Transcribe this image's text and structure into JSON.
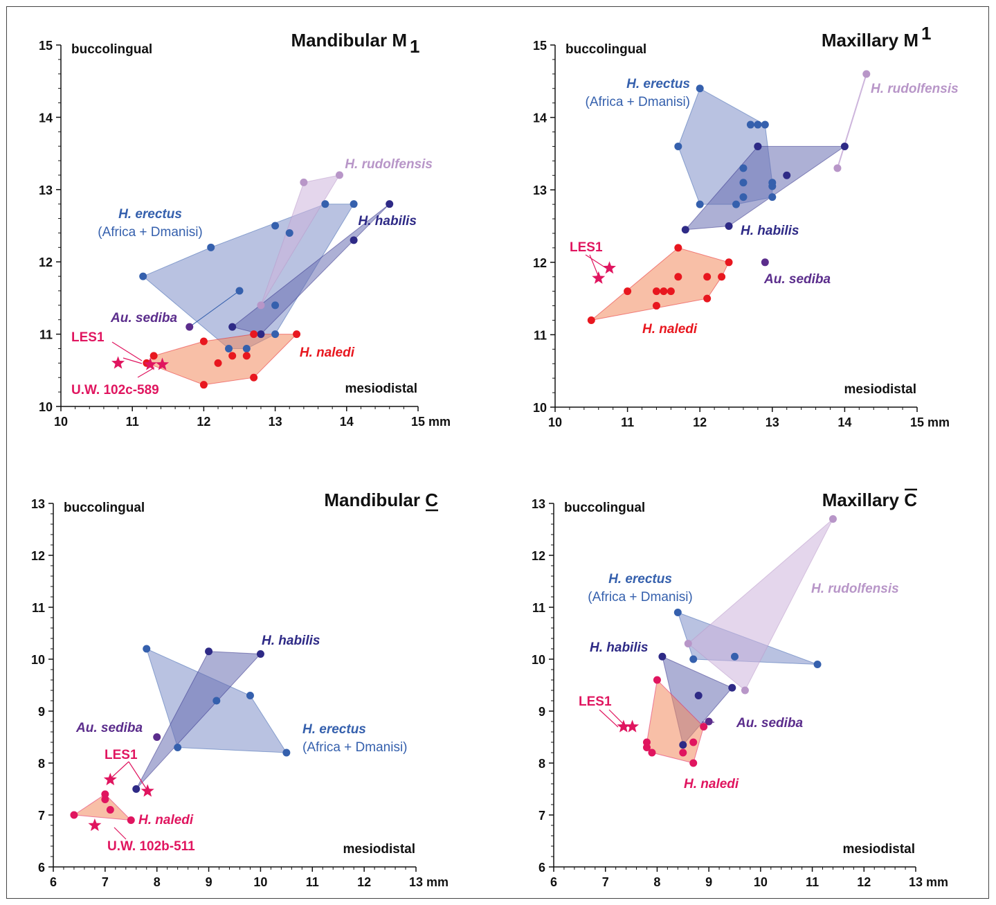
{
  "colors": {
    "naledi": "#e8171f",
    "naledi_pink": "#e0155f",
    "naledi_fill": "#f28a5f",
    "erectus": "#3560ad",
    "erectus_fill": "#7f90c8",
    "habilis": "#2e2a86",
    "habilis_fill": "#6a6fb3",
    "rudolfensis": "#b896c8",
    "rudolfensis_fill": "#cdb5dc",
    "sediba": "#5b2d8c",
    "axis": "#111111"
  },
  "chart_data": [
    {
      "type": "scatter",
      "title": "Mandibular M",
      "title_sub": "1",
      "title_mark": "subscript",
      "xlabel": "mesiodistal",
      "ylabel": "buccolingual",
      "xlim": [
        10,
        15
      ],
      "ylim": [
        10,
        15
      ],
      "xticks": [
        "10",
        "11",
        "12",
        "13",
        "14",
        "15 mm"
      ],
      "yticks": [
        "10",
        "11",
        "12",
        "13",
        "14",
        "15"
      ],
      "series": [
        {
          "name": "H. erectus",
          "name_sub": "(Africa + Dmanisi)",
          "color": "erectus",
          "hull": true,
          "points": [
            [
              11.15,
              11.8
            ],
            [
              12.1,
              12.2
            ],
            [
              12.5,
              11.6
            ],
            [
              13.0,
              12.5
            ],
            [
              13.2,
              12.4
            ],
            [
              13.7,
              12.8
            ],
            [
              14.1,
              12.8
            ],
            [
              13.0,
              11.4
            ],
            [
              13.0,
              11.0
            ],
            [
              12.35,
              10.8
            ],
            [
              12.6,
              10.8
            ]
          ]
        },
        {
          "name": "H. habilis",
          "color": "habilis",
          "hull": true,
          "points": [
            [
              14.6,
              12.8
            ],
            [
              14.1,
              12.3
            ],
            [
              12.8,
              11.0
            ],
            [
              12.4,
              11.1
            ]
          ]
        },
        {
          "name": "H. rudolfensis",
          "color": "rudolfensis",
          "hull": true,
          "points": [
            [
              13.4,
              13.1
            ],
            [
              13.9,
              13.2
            ],
            [
              12.8,
              11.4
            ]
          ]
        },
        {
          "name": "Au. sediba",
          "color": "sediba",
          "hull": false,
          "points": [
            [
              11.8,
              11.1
            ]
          ]
        },
        {
          "name": "H. naledi",
          "color": "naledi",
          "hull": true,
          "points": [
            [
              11.3,
              10.7
            ],
            [
              12.0,
              10.9
            ],
            [
              12.7,
              11.0
            ],
            [
              13.3,
              11.0
            ],
            [
              12.4,
              10.7
            ],
            [
              12.6,
              10.7
            ],
            [
              12.2,
              10.6
            ],
            [
              12.7,
              10.4
            ],
            [
              12.0,
              10.3
            ],
            [
              11.2,
              10.6
            ]
          ]
        },
        {
          "name": "LES1",
          "color": "naledi_pink",
          "marker": "star",
          "points": [
            [
              11.25,
              10.58
            ],
            [
              11.42,
              10.58
            ]
          ]
        },
        {
          "name": "U.W. 102c-589",
          "color": "naledi_pink",
          "marker": "star",
          "points": [
            [
              10.8,
              10.6
            ]
          ]
        }
      ]
    },
    {
      "type": "scatter",
      "title": "Maxillary M",
      "title_sub": "1",
      "title_mark": "superscript",
      "xlabel": "mesiodistal",
      "ylabel": "buccolingual",
      "xlim": [
        10,
        15
      ],
      "ylim": [
        10,
        15
      ],
      "xticks": [
        "10",
        "11",
        "12",
        "13",
        "14",
        "15 mm"
      ],
      "yticks": [
        "10",
        "11",
        "12",
        "13",
        "14",
        "15"
      ],
      "series": [
        {
          "name": "H. erectus",
          "name_sub": "(Africa + Dmanisi)",
          "color": "erectus",
          "hull": true,
          "points": [
            [
              12.0,
              14.4
            ],
            [
              11.7,
              13.6
            ],
            [
              12.0,
              12.8
            ],
            [
              12.5,
              12.8
            ],
            [
              12.6,
              12.9
            ],
            [
              12.6,
              13.1
            ],
            [
              12.6,
              13.3
            ],
            [
              12.7,
              13.9
            ],
            [
              12.8,
              13.9
            ],
            [
              12.9,
              13.9
            ],
            [
              12.8,
              13.6
            ],
            [
              13.0,
              13.1
            ],
            [
              13.0,
              13.05
            ],
            [
              13.0,
              12.9
            ]
          ]
        },
        {
          "name": "H. habilis",
          "color": "habilis",
          "hull": true,
          "points": [
            [
              14.0,
              13.6
            ],
            [
              13.2,
              13.2
            ],
            [
              12.4,
              12.5
            ],
            [
              11.8,
              12.45
            ],
            [
              12.8,
              13.6
            ]
          ]
        },
        {
          "name": "H. rudolfensis",
          "color": "rudolfensis",
          "hull": true,
          "points": [
            [
              14.3,
              14.6
            ],
            [
              13.9,
              13.3
            ]
          ]
        },
        {
          "name": "Au. sediba",
          "color": "sediba",
          "hull": false,
          "points": [
            [
              12.9,
              12.0
            ]
          ]
        },
        {
          "name": "H. naledi",
          "color": "naledi",
          "hull": true,
          "points": [
            [
              11.7,
              12.2
            ],
            [
              12.4,
              12.0
            ],
            [
              12.3,
              11.8
            ],
            [
              12.1,
              11.8
            ],
            [
              11.7,
              11.8
            ],
            [
              11.4,
              11.6
            ],
            [
              11.5,
              11.6
            ],
            [
              11.6,
              11.6
            ],
            [
              11.0,
              11.6
            ],
            [
              11.4,
              11.4
            ],
            [
              12.1,
              11.5
            ],
            [
              10.5,
              11.2
            ]
          ]
        },
        {
          "name": "LES1",
          "color": "naledi_pink",
          "marker": "star",
          "points": [
            [
              10.6,
              11.78
            ],
            [
              10.75,
              11.92
            ]
          ]
        }
      ]
    },
    {
      "type": "scatter",
      "title": "Mandibular C",
      "title_mark": "underline",
      "xlabel": "mesiodistal",
      "ylabel": "buccolingual",
      "xlim": [
        6,
        13
      ],
      "ylim": [
        6,
        13
      ],
      "xticks": [
        "6",
        "7",
        "8",
        "9",
        "10",
        "11",
        "12",
        "13 mm"
      ],
      "yticks": [
        "6",
        "7",
        "8",
        "9",
        "10",
        "11",
        "12",
        "13"
      ],
      "series": [
        {
          "name": "H. erectus",
          "name_sub": "(Africa + Dmanisi)",
          "color": "erectus",
          "hull": true,
          "points": [
            [
              7.8,
              10.2
            ],
            [
              9.8,
              9.3
            ],
            [
              10.5,
              8.2
            ],
            [
              8.4,
              8.3
            ],
            [
              9.15,
              9.2
            ]
          ]
        },
        {
          "name": "H. habilis",
          "color": "habilis",
          "hull": true,
          "points": [
            [
              9.0,
              10.15
            ],
            [
              10.0,
              10.1
            ],
            [
              7.6,
              7.5
            ]
          ]
        },
        {
          "name": "Au. sediba",
          "color": "sediba",
          "hull": false,
          "points": [
            [
              8.0,
              8.5
            ]
          ]
        },
        {
          "name": "H. naledi",
          "color": "naledi_pink",
          "hull": true,
          "points": [
            [
              6.4,
              7.0
            ],
            [
              7.0,
              7.4
            ],
            [
              7.0,
              7.3
            ],
            [
              7.1,
              7.1
            ],
            [
              7.5,
              6.9
            ]
          ]
        },
        {
          "name": "LES1",
          "color": "naledi_pink",
          "marker": "star",
          "points": [
            [
              7.1,
              7.68
            ],
            [
              7.82,
              7.46
            ]
          ]
        },
        {
          "name": "U.W. 102b-511",
          "color": "naledi_pink",
          "marker": "star",
          "points": [
            [
              6.8,
              6.8
            ]
          ]
        }
      ]
    },
    {
      "type": "scatter",
      "title": "Maxillary C",
      "title_mark": "overline",
      "xlabel": "mesiodistal",
      "ylabel": "buccolingual",
      "xlim": [
        6,
        13
      ],
      "ylim": [
        6,
        13
      ],
      "xticks": [
        "6",
        "7",
        "8",
        "9",
        "10",
        "11",
        "12",
        "13 mm"
      ],
      "yticks": [
        "6",
        "7",
        "8",
        "9",
        "10",
        "11",
        "12",
        "13"
      ],
      "series": [
        {
          "name": "H. erectus",
          "name_sub": "(Africa + Dmanisi)",
          "color": "erectus",
          "hull": true,
          "points": [
            [
              8.4,
              10.9
            ],
            [
              11.1,
              9.9
            ],
            [
              8.7,
              10.0
            ],
            [
              9.5,
              10.05
            ]
          ]
        },
        {
          "name": "H. habilis",
          "color": "habilis",
          "hull": true,
          "points": [
            [
              8.1,
              10.05
            ],
            [
              9.45,
              9.45
            ],
            [
              8.8,
              9.3
            ],
            [
              8.5,
              8.35
            ]
          ]
        },
        {
          "name": "H. rudolfensis",
          "color": "rudolfensis",
          "hull": true,
          "points": [
            [
              11.4,
              12.7
            ],
            [
              8.6,
              10.3
            ],
            [
              9.7,
              9.4
            ]
          ]
        },
        {
          "name": "Au. sediba",
          "color": "sediba",
          "hull": false,
          "leader": true,
          "points": [
            [
              9.0,
              8.8
            ]
          ]
        },
        {
          "name": "H. naledi",
          "color": "naledi_pink",
          "hull": true,
          "points": [
            [
              8.0,
              9.6
            ],
            [
              8.9,
              8.7
            ],
            [
              8.7,
              8.4
            ],
            [
              8.7,
              8.0
            ],
            [
              8.5,
              8.2
            ],
            [
              7.9,
              8.2
            ],
            [
              7.8,
              8.3
            ],
            [
              7.8,
              8.4
            ]
          ]
        },
        {
          "name": "LES1",
          "color": "naledi_pink",
          "marker": "star",
          "points": [
            [
              7.35,
              8.7
            ],
            [
              7.52,
              8.7
            ]
          ]
        }
      ]
    }
  ]
}
